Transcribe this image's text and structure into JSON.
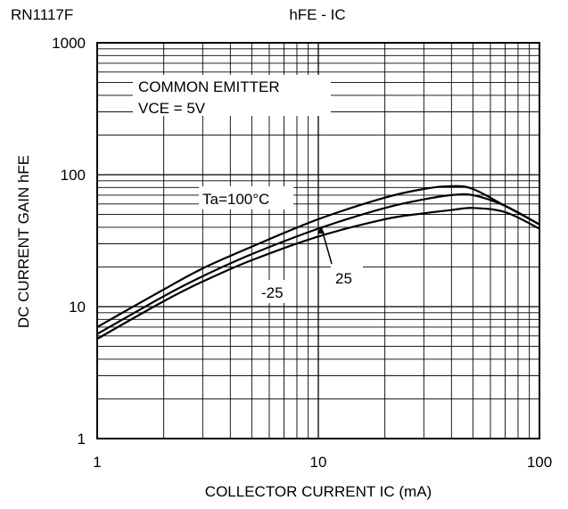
{
  "part_number": "RN1117F",
  "chart_data": {
    "type": "line",
    "title": "hFE - IC",
    "xlabel": "COLLECTOR CURRENT   IC (mA)",
    "ylabel": "DC CURRENT GAIN   hFE",
    "xscale": "log",
    "yscale": "log",
    "xlim": [
      1,
      100
    ],
    "ylim": [
      1,
      1000
    ],
    "x_ticks": [
      "1",
      "10",
      "100"
    ],
    "y_ticks": [
      "1",
      "10",
      "100",
      "1000"
    ],
    "grid": true,
    "annotations": [
      "COMMON EMITTER",
      "VCE = 5V"
    ],
    "series": [
      {
        "name": "Ta=100°C",
        "x": [
          1,
          2,
          3,
          5,
          10,
          20,
          30,
          40,
          50,
          70,
          100
        ],
        "y": [
          7,
          13.5,
          19.5,
          28.5,
          46,
          67,
          78,
          82,
          78,
          58,
          42
        ]
      },
      {
        "name": "25",
        "x": [
          1,
          2,
          3,
          5,
          10,
          20,
          30,
          40,
          50,
          70,
          100
        ],
        "y": [
          6.2,
          12,
          17,
          25,
          39,
          56,
          65,
          70,
          70,
          58,
          42
        ]
      },
      {
        "name": "-25",
        "x": [
          1,
          2,
          3,
          5,
          10,
          20,
          30,
          40,
          50,
          70,
          100
        ],
        "y": [
          5.7,
          11,
          15.5,
          22.5,
          34,
          46,
          51,
          54,
          56,
          52,
          39
        ]
      }
    ]
  }
}
